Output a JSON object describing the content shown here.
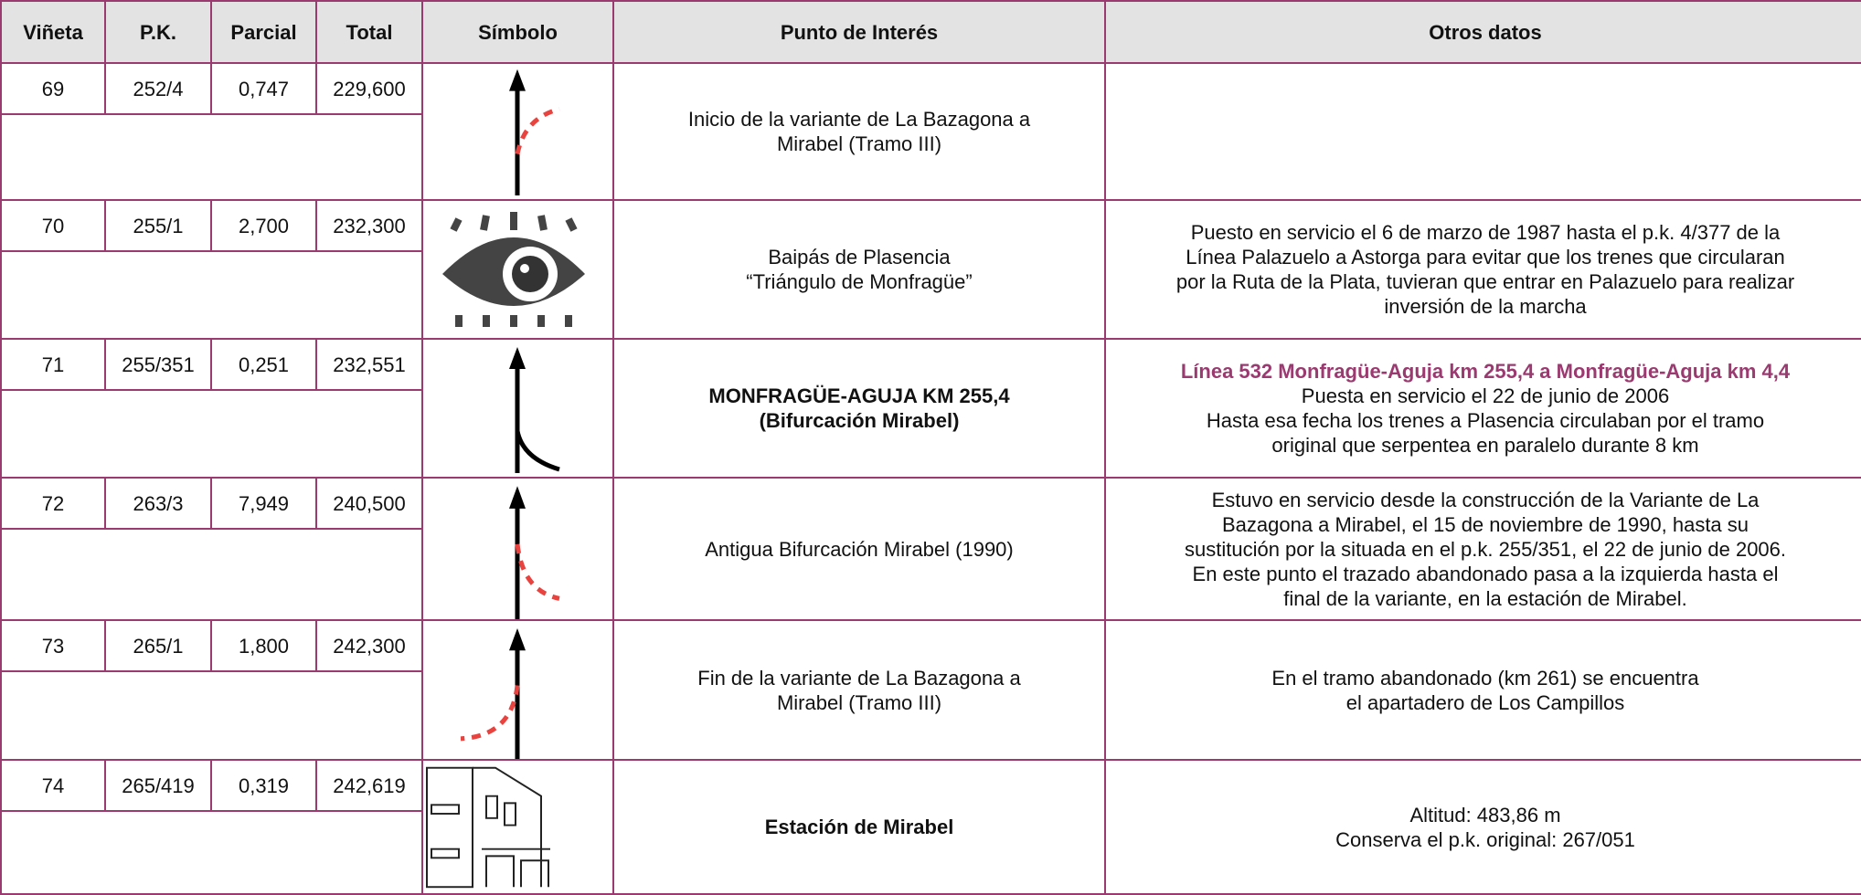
{
  "header": [
    "Viñeta",
    "P.K.",
    "Parcial",
    "Total",
    "Símbolo",
    "Punto de Interés",
    "Otros datos"
  ],
  "rows": [
    {
      "vineta": "69",
      "pk": "252/4",
      "parcial": "0,747",
      "total": "229,600",
      "punto": [
        "Inicio de la variante de La Bazagona a",
        "Mirabel (Tramo III)"
      ],
      "otros": []
    },
    {
      "vineta": "70",
      "pk": "255/1",
      "parcial": "2,700",
      "total": "232,300",
      "punto": [
        "Baipás de Plasencia",
        "“Triángulo de Monfragüe”"
      ],
      "otros": [
        "Puesto en servicio el 6 de marzo de 1987 hasta el p.k. 4/377 de la",
        "Línea Palazuelo a Astorga para evitar que los trenes que circularan",
        "por la Ruta de la Plata, tuvieran que entrar en Palazuelo para realizar",
        "inversión de la marcha"
      ]
    },
    {
      "vineta": "71",
      "pk": "255/351",
      "parcial": "0,251",
      "total": "232,551",
      "punto": [
        "MONFRAGÜE-AGUJA KM 255,4",
        "(Bifurcación Mirabel)"
      ],
      "otros": [
        "Línea 532 Monfragüe-Aguja km 255,4 a Monfragüe-Aguja km 4,4",
        "Puesta en servicio el 22 de junio de 2006",
        "Hasta esa fecha los trenes a Plasencia circulaban por el tramo",
        "original que serpentea en paralelo durante 8 km"
      ]
    },
    {
      "vineta": "72",
      "pk": "263/3",
      "parcial": "7,949",
      "total": "240,500",
      "punto": [
        "Antigua Bifurcación Mirabel (1990)"
      ],
      "otros": [
        "Estuvo en servicio desde la construcción de la Variante de La",
        "Bazagona a Mirabel, el 15 de noviembre de 1990, hasta su",
        "sustitución por la situada en el p.k. 255/351, el 22 de junio de 2006.",
        "En este punto el trazado abandonado pasa a la izquierda hasta el",
        "final de la variante, en la estación de Mirabel."
      ]
    },
    {
      "vineta": "73",
      "pk": "265/1",
      "parcial": "1,800",
      "total": "242,300",
      "punto": [
        "Fin de la variante de La Bazagona a",
        "Mirabel (Tramo III)"
      ],
      "otros": [
        "En el tramo abandonado (km 261) se encuentra",
        "el apartadero de Los Campillos"
      ]
    },
    {
      "vineta": "74",
      "pk": "265/419",
      "parcial": "0,319",
      "total": "242,619",
      "punto": [
        "Estación de Mirabel"
      ],
      "otros": [
        "Altitud: 483,86 m",
        "Conserva el p.k. original: 267/051"
      ]
    }
  ]
}
